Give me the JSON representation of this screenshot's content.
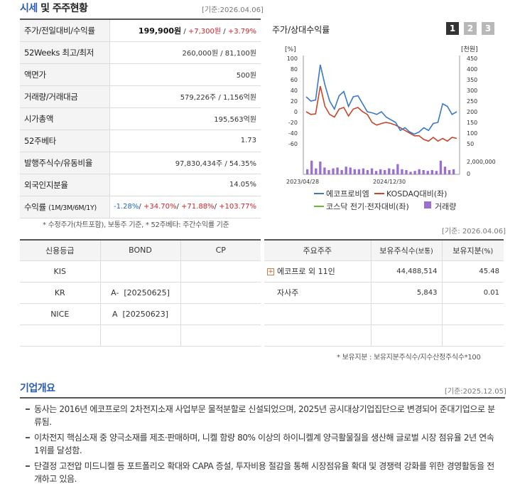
{
  "market": {
    "title_a": "시세",
    "title_b": " 및 주주현황",
    "basis": "[기준:2026.04.06]",
    "rows": [
      {
        "label": "주가/전일대비/수익률"
      },
      {
        "label": "52Weeks 최고/최저",
        "value": "260,000원 / 81,100원"
      },
      {
        "label": "액면가",
        "value": "500원"
      },
      {
        "label": "거래량/거래대금",
        "value": "579,226주 / 1,156억원"
      },
      {
        "label": "시가총액",
        "value": "195,563억원"
      },
      {
        "label": "52주베타",
        "value": "1.73"
      },
      {
        "label": "발행주식수/유동비율",
        "value": "97,830,434주 / 54.35%"
      },
      {
        "label": "외국인지분율",
        "value": "14.05%"
      },
      {
        "label": "수익률",
        "sub": "(1M/3M/6M/1Y)"
      }
    ],
    "price": "199,900원",
    "change": "+7,300원",
    "change_pct": "+3.79%",
    "returns": [
      "-1.28%",
      "+34.70%",
      "+71.88%",
      "+103.77%"
    ],
    "note": "* 수정주가(차트포함), 보통주 기준, * 52주베타: 주간수익률 기준"
  },
  "chart": {
    "title": "주가/상대수익률",
    "pages": [
      "1",
      "2",
      "3"
    ],
    "left_unit": "[%]",
    "right_unit": "[천원]",
    "vol_tick": "2,000,000",
    "vol_zero": "0",
    "basis": "[기준: 2026.04.06]",
    "legend": {
      "s1": "에코프로비엠",
      "s2": "KOSDAQ대비(좌)",
      "s3": "코스닥 전기·전자대비(좌)",
      "s4": "거래량"
    },
    "colors": {
      "s1": "#3a78c9",
      "s2": "#c8452a",
      "s3": "#6aba2c",
      "s4": "#9b6fd1"
    }
  },
  "chart_data": {
    "type": "line",
    "x_labels": [
      "2023/04/28",
      "2024/12/30"
    ],
    "y_left": {
      "unit": "%",
      "ticks": [
        100,
        80,
        60,
        40,
        20,
        0,
        -20,
        -40,
        -60
      ],
      "ylim": [
        -60,
        100
      ]
    },
    "y_right": {
      "unit": "천원",
      "ticks": [
        450,
        400,
        350,
        300,
        250,
        200,
        150,
        100,
        50
      ],
      "ylim": [
        50,
        450
      ]
    },
    "series": [
      {
        "name": "에코프로비엠",
        "values": [
          28,
          20,
          22,
          88,
          50,
          20,
          5,
          30,
          38,
          10,
          28,
          30,
          15,
          0,
          -2,
          -5,
          0,
          -10,
          -15,
          -20,
          -35,
          -30,
          -38,
          -42,
          -38,
          -30,
          -35,
          -22,
          -20,
          15,
          10,
          -5,
          0
        ]
      },
      {
        "name": "KOSDAQ대비(좌)",
        "values": [
          0,
          -5,
          -4,
          48,
          10,
          -5,
          -10,
          5,
          8,
          -8,
          5,
          8,
          0,
          -5,
          -20,
          -25,
          -22,
          -20,
          -22,
          -25,
          -30,
          -35,
          -40,
          -45,
          -45,
          -52,
          -55,
          -48,
          -55,
          -50,
          -55,
          -48,
          -50
        ]
      },
      {
        "name": "거래량",
        "values": [
          0.6,
          1.6,
          0.7,
          1.5,
          0.8,
          0.5,
          0.7,
          0.8,
          0.5,
          0.9,
          0.8,
          0.6,
          0.6,
          0.7,
          0.5,
          0.7,
          0.4,
          0.6,
          0.5,
          0.7,
          0.6,
          1.2,
          0.6,
          0.5,
          0.3,
          0.4,
          0.6,
          0.5,
          0.4,
          0.5,
          0.4,
          1.6,
          0.9,
          0.5,
          0.6
        ]
      }
    ]
  },
  "credit": {
    "headers": [
      "신용등급",
      "BOND",
      "CP"
    ],
    "rows": [
      [
        "KIS",
        "",
        ""
      ],
      [
        "KR",
        "A-  [20250625]",
        ""
      ],
      [
        "NICE",
        "A  [20250623]",
        ""
      ],
      [
        "",
        "",
        ""
      ]
    ]
  },
  "holders": {
    "headers": [
      "주요주주",
      "보유주식수",
      "(보통)",
      "보유지분",
      "(%)"
    ],
    "rows": [
      {
        "name": "에코프로 외 11인",
        "shares": "44,488,514",
        "pct": "45.48",
        "expandable": true
      },
      {
        "name": "자사주",
        "shares": "5,843",
        "pct": "0.01",
        "expandable": false
      },
      {
        "name": "",
        "shares": "",
        "pct": "",
        "expandable": false
      },
      {
        "name": "",
        "shares": "",
        "pct": "",
        "expandable": false
      }
    ],
    "note": "* 보유지분 : 보유지분주식수/지수산정주식수*100"
  },
  "overview": {
    "title": "기업개요",
    "basis": "[기준:2025.12.05]",
    "items": [
      "동사는 2016년 에코프로의 2차전지소재 사업부문 물적분할로 신설되었으며, 2025년 공시대상기업집단으로 변경되어 준대기업으로 분류됨.",
      "이차전지 핵심소재 중 양극소재를 제조·판매하며, 니켈 함량 80% 이상의 하이니켈계 양극활물질을 생산해 글로벌 시장 점유율 2년 연속 1위를 달성함.",
      "단결정 고전압 미드니켈 등 포트폴리오 확대와 CAPA 증설, 투자비용 절감을 통해 시장점유율 확대 및 경쟁력 강화를 위한 경영활동을 전개하고 있음."
    ]
  }
}
